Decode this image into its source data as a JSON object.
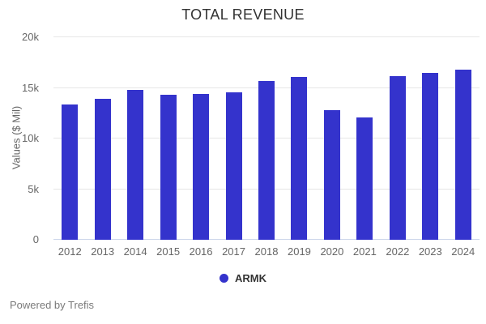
{
  "chart_data": {
    "type": "bar",
    "title": "TOTAL REVENUE",
    "ylabel": "Values ($ Mil)",
    "categories": [
      "2012",
      "2013",
      "2014",
      "2015",
      "2016",
      "2017",
      "2018",
      "2019",
      "2020",
      "2021",
      "2022",
      "2023",
      "2024"
    ],
    "series": [
      {
        "name": "ARMK",
        "color": "#3433cc",
        "values": [
          13400,
          13900,
          14800,
          14300,
          14400,
          14600,
          15700,
          16100,
          12800,
          12100,
          16200,
          16500,
          16800
        ]
      }
    ],
    "ylim": [
      0,
      20000
    ],
    "yticks": [
      {
        "value": 0,
        "label": "0"
      },
      {
        "value": 5000,
        "label": "5k"
      },
      {
        "value": 10000,
        "label": "10k"
      },
      {
        "value": 15000,
        "label": "15k"
      },
      {
        "value": 20000,
        "label": "20k"
      }
    ],
    "grid": true,
    "legend_position": "bottom"
  },
  "icons": {
    "legend_marker": "filled-circle"
  },
  "colors": {
    "series": "#3433cc",
    "gridline": "#e6e6e6",
    "axis_line": "#ccd6eb",
    "tick_text": "#666666",
    "title_text": "#333333"
  },
  "footer": {
    "credit": "Powered by Trefis"
  }
}
